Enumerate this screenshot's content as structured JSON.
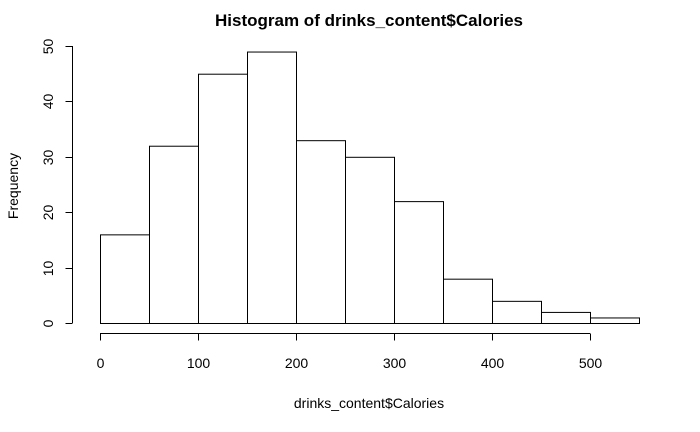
{
  "chart_data": {
    "type": "bar",
    "title": "Histogram of drinks_content$Calories",
    "xlabel": "drinks_content$Calories",
    "ylabel": "Frequency",
    "bins": [
      {
        "start": 0,
        "end": 50,
        "count": 16
      },
      {
        "start": 50,
        "end": 100,
        "count": 32
      },
      {
        "start": 100,
        "end": 150,
        "count": 45
      },
      {
        "start": 150,
        "end": 200,
        "count": 49
      },
      {
        "start": 200,
        "end": 250,
        "count": 33
      },
      {
        "start": 250,
        "end": 300,
        "count": 30
      },
      {
        "start": 300,
        "end": 350,
        "count": 22
      },
      {
        "start": 350,
        "end": 400,
        "count": 8
      },
      {
        "start": 400,
        "end": 450,
        "count": 4
      },
      {
        "start": 450,
        "end": 500,
        "count": 2
      },
      {
        "start": 500,
        "end": 550,
        "count": 1
      }
    ],
    "xlim": [
      0,
      550
    ],
    "ylim": [
      0,
      50
    ],
    "xticks": [
      "0",
      "100",
      "200",
      "300",
      "400",
      "500"
    ],
    "yticks": [
      "0",
      "10",
      "20",
      "30",
      "40",
      "50"
    ],
    "grid": false,
    "bar_fill": "#ffffff",
    "bar_stroke": "#000000"
  }
}
